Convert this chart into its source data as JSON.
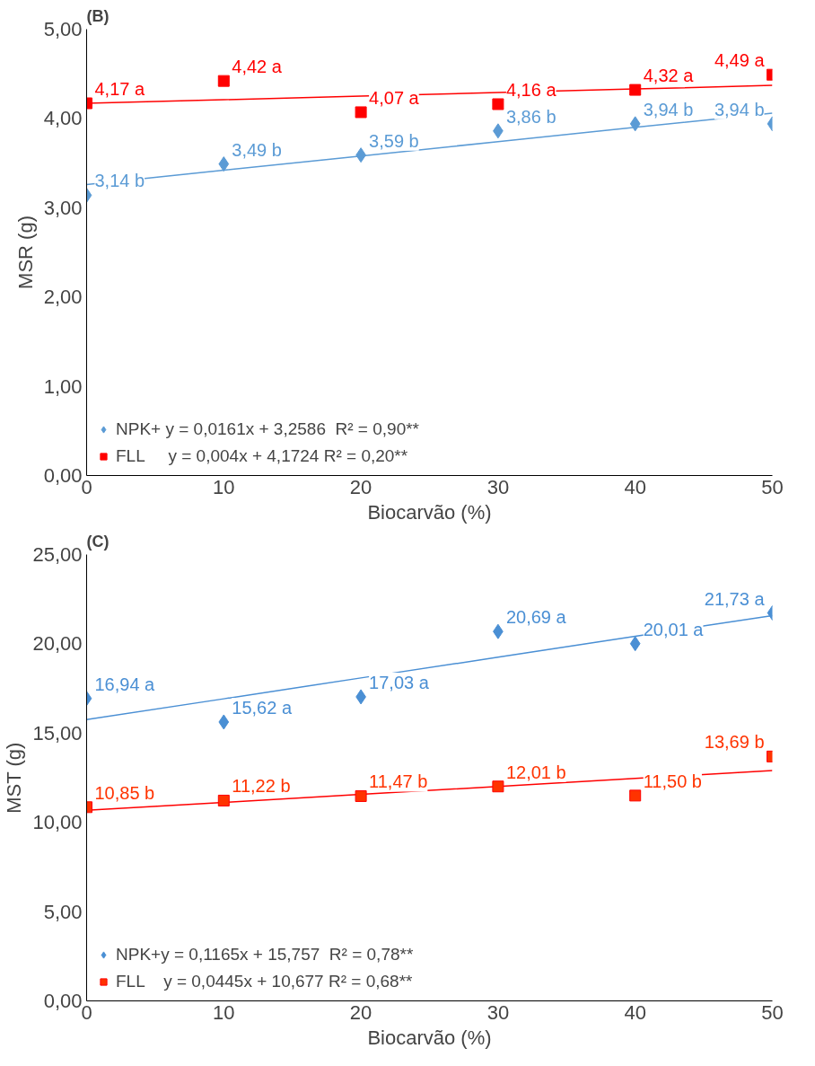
{
  "chart_data": [
    {
      "type": "scatter",
      "title": "(B)",
      "xlabel": "Biocarvão (%)",
      "ylabel": "MSR (g)",
      "x": [
        0,
        10,
        20,
        30,
        40,
        50
      ],
      "xlim": [
        0,
        50
      ],
      "xticks": [
        0,
        10,
        20,
        30,
        40,
        50
      ],
      "ylim": [
        0,
        5
      ],
      "yticks": [
        {
          "value": 0,
          "label": "0,00"
        },
        {
          "value": 1,
          "label": "1,00"
        },
        {
          "value": 2,
          "label": "2,00"
        },
        {
          "value": 3,
          "label": "3,00"
        },
        {
          "value": 4,
          "label": "4,00"
        },
        {
          "value": 5,
          "label": "5,00"
        }
      ],
      "grid": false,
      "legend": "bottom left",
      "series": [
        {
          "name": "NPK+ y = 0,0161x + 3,2586  R² = 0,90**",
          "marker": "diamond",
          "color": "#5b9bd5",
          "values": [
            3.14,
            3.49,
            3.59,
            3.86,
            3.94,
            3.94
          ],
          "value_labels": [
            "3,14 b",
            "3,49 b",
            "3,59 b",
            "3,86 b",
            "3,94 b",
            "3,94 b"
          ]
        },
        {
          "name": "FLL     y = 0,004x + 4,1724 R² = 0,20**",
          "marker": "square",
          "color": "#ff0000",
          "values": [
            4.17,
            4.42,
            4.07,
            4.16,
            4.32,
            4.49
          ],
          "value_labels": [
            "4,17 a",
            "4,42 a",
            "4,07 a",
            "4,16 a",
            "4,32 a",
            "4,49 a"
          ]
        },
        {
          "type": "line",
          "color": "#5b9bd5",
          "values": [
            3.26,
            3.42,
            3.58,
            3.74,
            3.9,
            4.06
          ]
        },
        {
          "type": "line",
          "color": "#ff0000",
          "values": [
            4.17,
            4.21,
            4.25,
            4.29,
            4.33,
            4.37
          ]
        }
      ]
    },
    {
      "type": "scatter",
      "title": "(C)",
      "xlabel": "Biocarvão (%)",
      "ylabel": "MST (g)",
      "x": [
        0,
        10,
        20,
        30,
        40,
        50
      ],
      "xlim": [
        0,
        50
      ],
      "xticks": [
        0,
        10,
        20,
        30,
        40,
        50
      ],
      "ylim": [
        0,
        25
      ],
      "yticks": [
        {
          "value": 0,
          "label": "0,00"
        },
        {
          "value": 5,
          "label": "5,00"
        },
        {
          "value": 10,
          "label": "10,00"
        },
        {
          "value": 15,
          "label": "15,00"
        },
        {
          "value": 20,
          "label": "20,00"
        },
        {
          "value": 25,
          "label": "25,00"
        }
      ],
      "grid": false,
      "legend": "bottom left",
      "series": [
        {
          "name": "NPK+y = 0,1165x + 15,757  R² = 0,78**",
          "marker": "diamond",
          "color": "#4a8fd4",
          "values": [
            16.94,
            15.62,
            17.03,
            20.69,
            20.01,
            21.73
          ],
          "value_labels": [
            "16,94 a",
            "15,62 a",
            "17,03 a",
            "20,69 a",
            "20,01 a",
            "21,73 a"
          ]
        },
        {
          "name": "FLL    y = 0,0445x + 10,677 R² = 0,68**",
          "marker": "square",
          "color": "#ff3300",
          "values": [
            10.85,
            11.22,
            11.47,
            12.01,
            11.5,
            13.69
          ],
          "value_labels": [
            "10,85 b",
            "11,22 b",
            "11,47 b",
            "12,01 b",
            "11,50 b",
            "13,69 b"
          ]
        },
        {
          "type": "line",
          "color": "#4a8fd4",
          "values": [
            15.76,
            16.92,
            18.09,
            19.25,
            20.42,
            21.58
          ]
        },
        {
          "type": "line",
          "color": "#ff0000",
          "values": [
            10.68,
            11.12,
            11.57,
            12.01,
            12.46,
            12.9
          ]
        }
      ]
    }
  ]
}
